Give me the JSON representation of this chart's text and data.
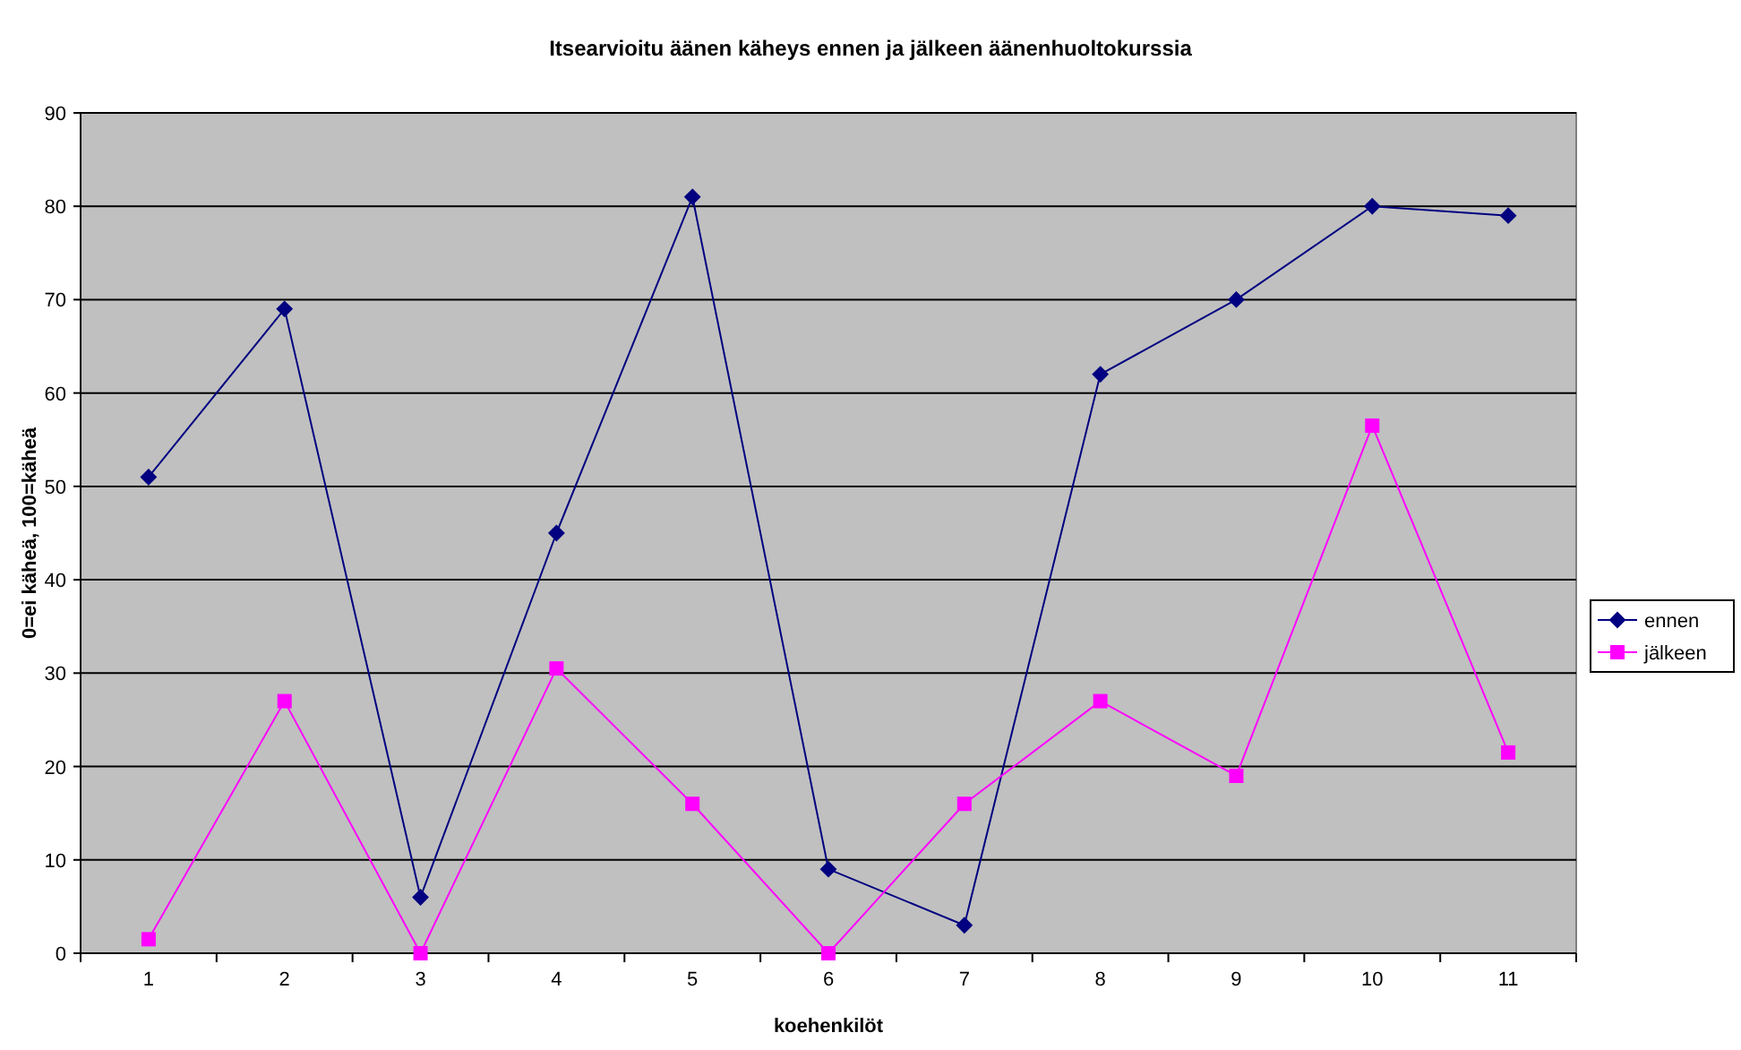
{
  "chart_data": {
    "type": "line",
    "title": "Itsearvioitu äänen käheys ennen ja jälkeen äänenhuoltokurssia",
    "xlabel": "koehenkilöt",
    "ylabel": "0=ei käheä, 100=käheä",
    "categories": [
      "1",
      "2",
      "3",
      "4",
      "5",
      "6",
      "7",
      "8",
      "9",
      "10",
      "11"
    ],
    "series": [
      {
        "name": "ennen",
        "color": "#000080",
        "marker": "diamond",
        "values": [
          51,
          69,
          6,
          45,
          81,
          9,
          3,
          62,
          70,
          80,
          79
        ]
      },
      {
        "name": "jälkeen",
        "color": "#ff00ff",
        "marker": "square",
        "values": [
          1.5,
          27,
          0,
          30.5,
          16,
          0,
          16,
          27,
          19,
          56.5,
          21.5
        ]
      }
    ],
    "ylim": [
      0,
      90
    ],
    "yticks": [
      0,
      10,
      20,
      30,
      40,
      50,
      60,
      70,
      80,
      90
    ],
    "grid": "y",
    "legend": "right"
  }
}
